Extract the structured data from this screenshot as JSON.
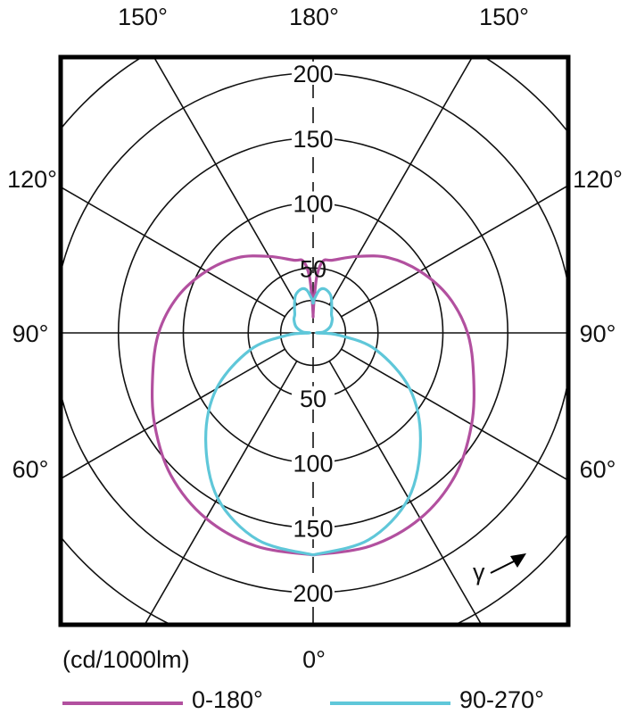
{
  "chart_data": {
    "type": "polar",
    "unit_label": "(cd/1000lm)",
    "radial_ticks": [
      50,
      100,
      150,
      200
    ],
    "radial_rings": [
      25,
      50,
      100,
      150,
      200,
      250
    ],
    "rmax": 250,
    "angle_labels": {
      "top_left": "150°",
      "top_center": "180°",
      "top_right": "150°",
      "left_120": "120°",
      "right_120": "120°",
      "left_90": "90°",
      "right_90": "90°",
      "left_60": "60°",
      "right_60": "60°",
      "bottom_center": "0°"
    },
    "gamma_symbol": "γ",
    "grid": true,
    "legend_position": "bottom",
    "series": [
      {
        "name": "0-180°",
        "color": "#b2509f",
        "gamma": [
          0,
          15,
          30,
          45,
          60,
          75,
          90,
          105,
          120,
          135,
          150,
          165,
          172,
          176,
          178,
          180
        ],
        "intensity": [
          171,
          170,
          165,
          155,
          141,
          128,
          119,
          108,
          95,
          82,
          68,
          58,
          56,
          45,
          28,
          14
        ]
      },
      {
        "name": "90-270°",
        "color": "#5fc7d9",
        "gamma": [
          0,
          15,
          30,
          45,
          60,
          75,
          85,
          90,
          95,
          110,
          125,
          135,
          145,
          155,
          165,
          172,
          180
        ],
        "intensity": [
          171,
          165,
          147,
          117,
          86,
          50,
          20,
          3,
          8,
          14,
          18,
          20,
          25,
          32,
          35,
          33,
          24
        ]
      }
    ]
  }
}
